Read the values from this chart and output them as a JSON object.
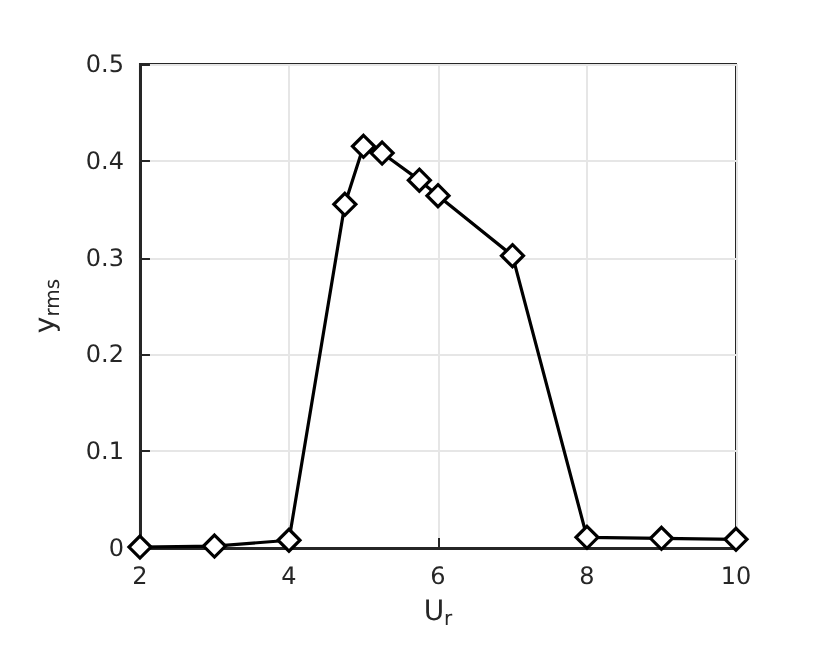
{
  "chart_data": {
    "type": "line",
    "xlabel": "U$_{r}$",
    "ylabel": "y$_{rms}$",
    "x": [
      2,
      3,
      4,
      4.75,
      5,
      5.25,
      5.75,
      6,
      7,
      8,
      9,
      10
    ],
    "series": [
      {
        "color": "#000000",
        "values": [
          0.001,
          0.002,
          0.008,
          0.355,
          0.415,
          0.408,
          0.38,
          0.364,
          0.302,
          0.011,
          0.01,
          0.009
        ]
      }
    ],
    "xlim": [
      2,
      10
    ],
    "xticks": [
      2,
      4,
      6,
      8,
      10
    ],
    "ylim": [
      0,
      0.5
    ],
    "yticks": [
      0,
      0.1,
      0.2,
      0.3,
      0.4,
      0.5
    ],
    "grid": true,
    "marker": "diamond",
    "line_style": "solid"
  }
}
